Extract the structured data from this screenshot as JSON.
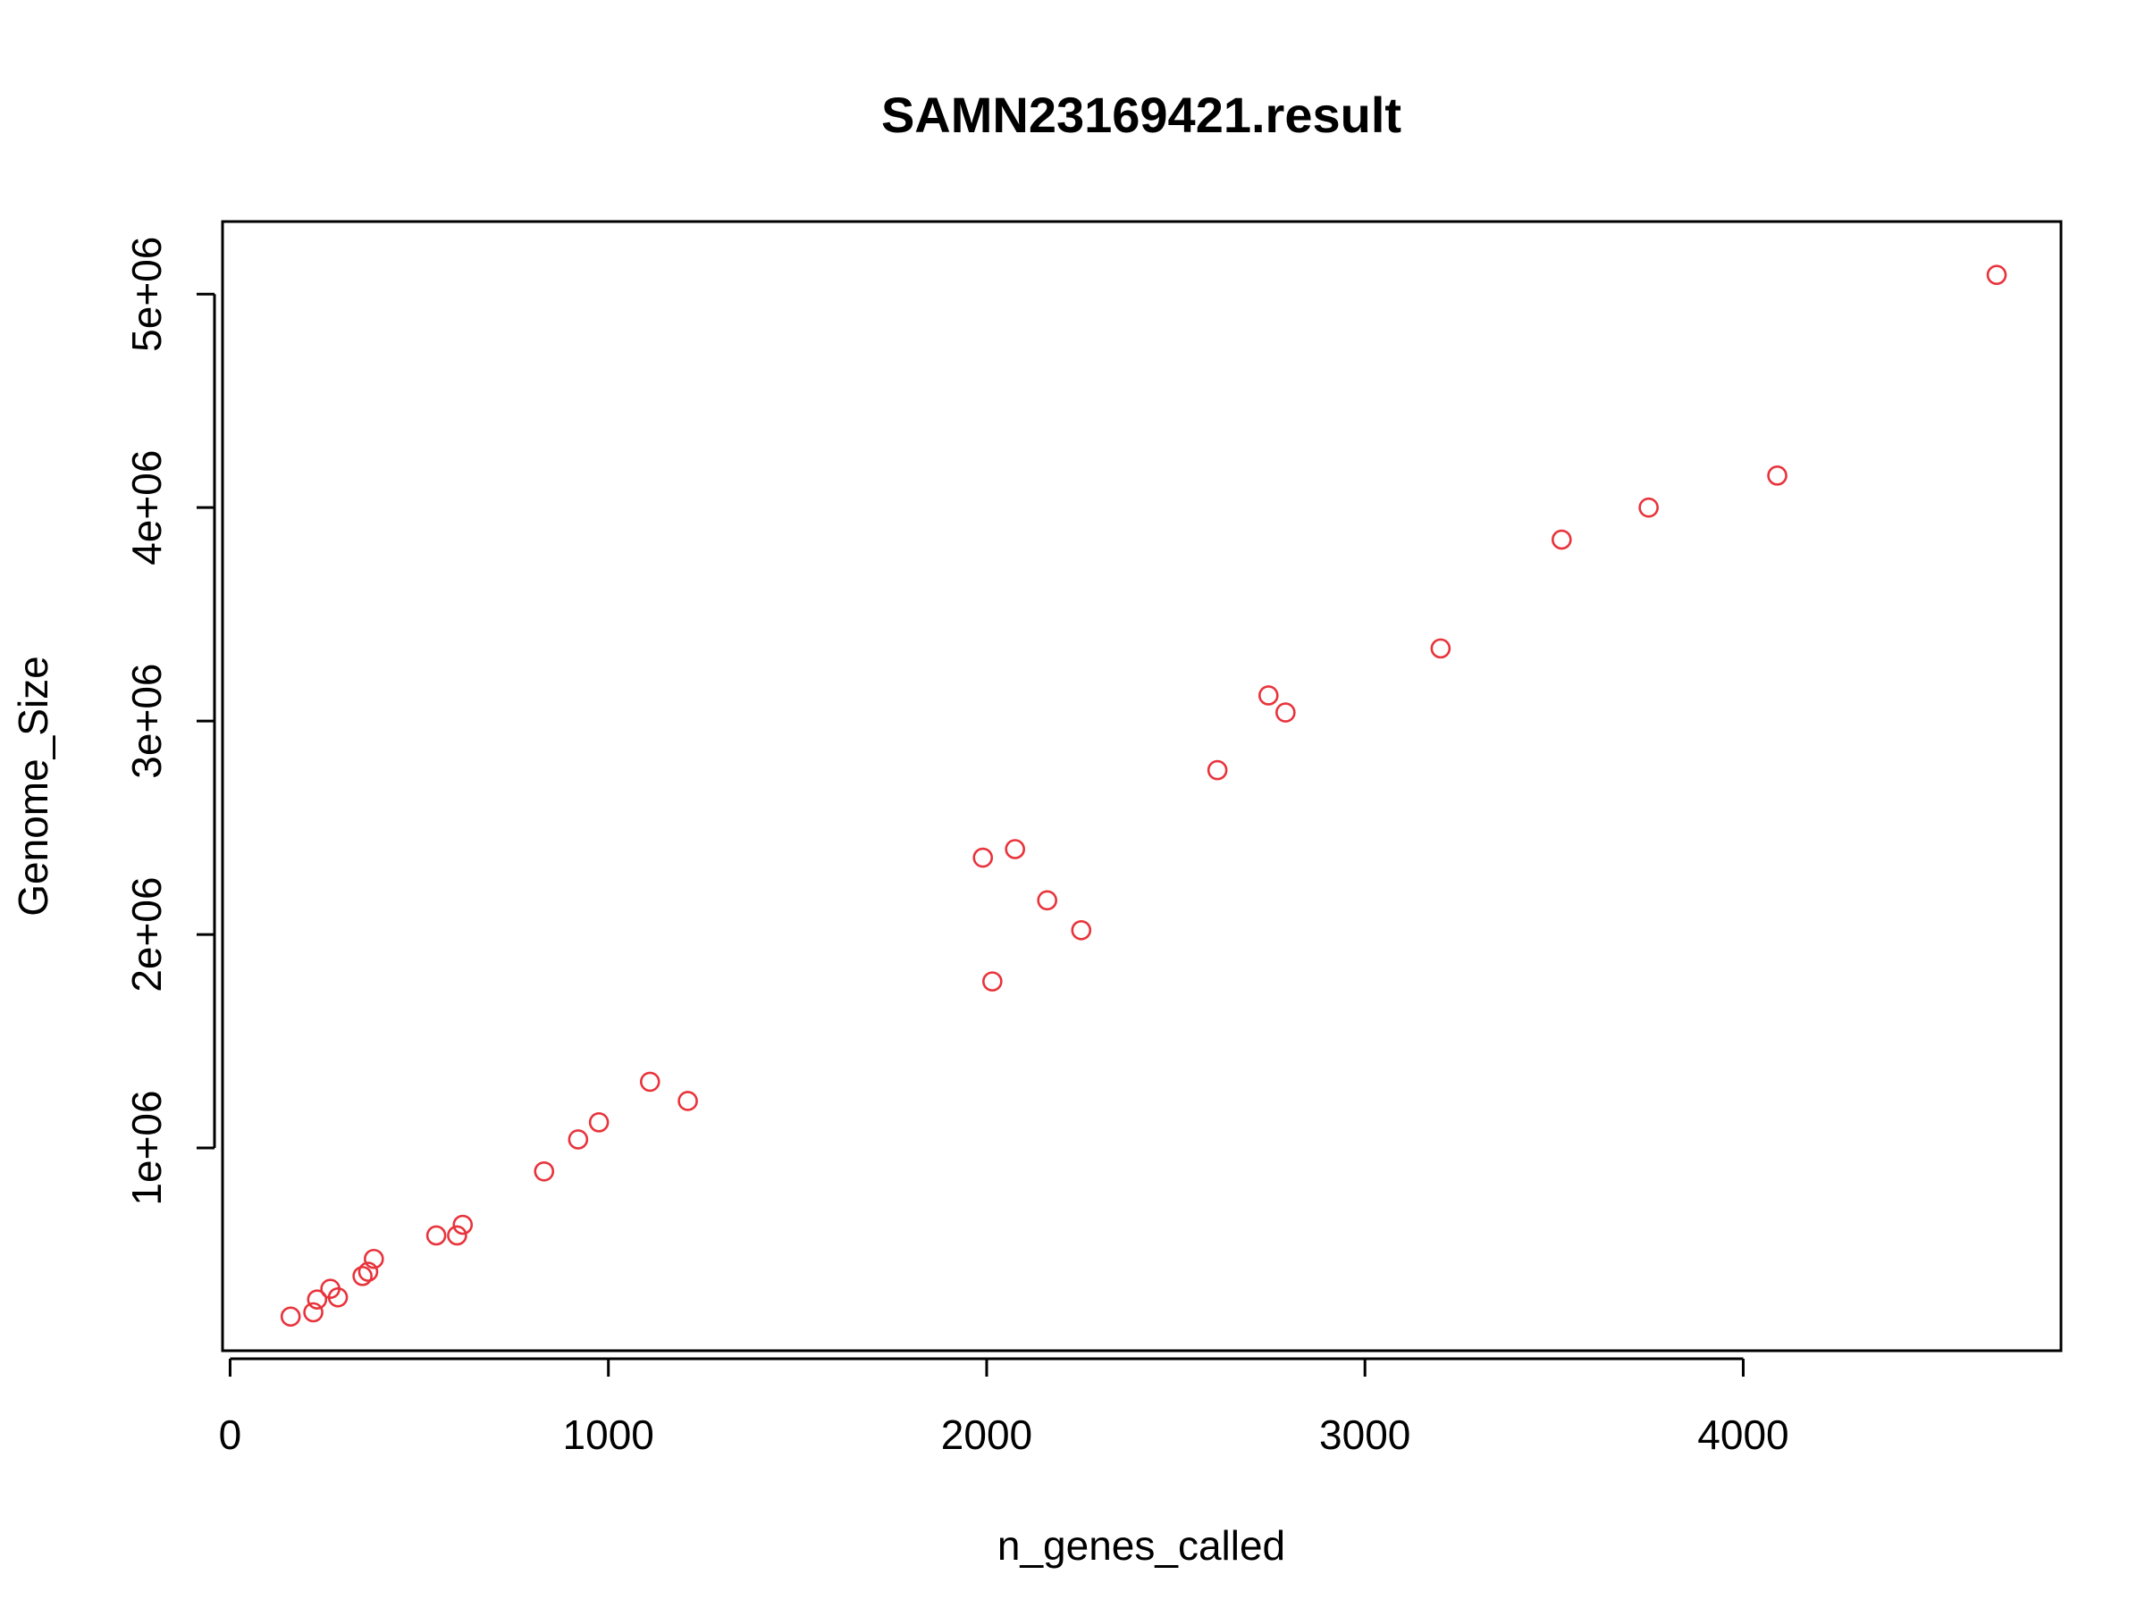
{
  "chart_data": {
    "type": "scatter",
    "title": "SAMN23169421.result",
    "xlabel": "n_genes_called",
    "ylabel": "Genome_Size",
    "xlim": [
      -20,
      4840
    ],
    "ylim": [
      50000,
      5340000
    ],
    "x_ticks": [
      0,
      1000,
      2000,
      3000,
      4000
    ],
    "x_tick_labels": [
      "0",
      "1000",
      "2000",
      "3000",
      "4000"
    ],
    "y_ticks": [
      1000000,
      2000000,
      3000000,
      4000000,
      5000000
    ],
    "y_tick_labels": [
      "1e+06",
      "2e+06",
      "3e+06",
      "4e+06",
      "5e+06"
    ],
    "grid": false,
    "marker": "open-circle",
    "point_color": "#e8333b",
    "points": [
      {
        "x": 160,
        "y": 210000
      },
      {
        "x": 220,
        "y": 230000
      },
      {
        "x": 230,
        "y": 290000
      },
      {
        "x": 265,
        "y": 340000
      },
      {
        "x": 285,
        "y": 300000
      },
      {
        "x": 350,
        "y": 400000
      },
      {
        "x": 365,
        "y": 420000
      },
      {
        "x": 380,
        "y": 480000
      },
      {
        "x": 545,
        "y": 590000
      },
      {
        "x": 600,
        "y": 590000
      },
      {
        "x": 615,
        "y": 640000
      },
      {
        "x": 830,
        "y": 890000
      },
      {
        "x": 920,
        "y": 1040000
      },
      {
        "x": 975,
        "y": 1120000
      },
      {
        "x": 1110,
        "y": 1310000
      },
      {
        "x": 1210,
        "y": 1220000
      },
      {
        "x": 1990,
        "y": 2360000
      },
      {
        "x": 2015,
        "y": 1780000
      },
      {
        "x": 2075,
        "y": 2400000
      },
      {
        "x": 2160,
        "y": 2160000
      },
      {
        "x": 2250,
        "y": 2020000
      },
      {
        "x": 2610,
        "y": 2770000
      },
      {
        "x": 2745,
        "y": 3120000
      },
      {
        "x": 2790,
        "y": 3040000
      },
      {
        "x": 3200,
        "y": 3340000
      },
      {
        "x": 3520,
        "y": 3850000
      },
      {
        "x": 3750,
        "y": 4000000
      },
      {
        "x": 4090,
        "y": 4150000
      },
      {
        "x": 4670,
        "y": 5090000
      }
    ]
  }
}
